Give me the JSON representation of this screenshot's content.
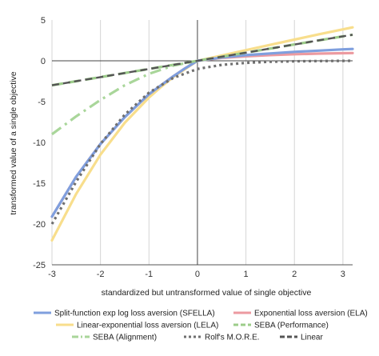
{
  "chart_data": {
    "type": "line",
    "title": "",
    "xlabel": "standardized but untransformed value of  single objective",
    "ylabel": "transformed value of a single objective",
    "xlim": [
      -3,
      3.2
    ],
    "ylim": [
      -25,
      5
    ],
    "x_ticks": [
      -3,
      -2,
      -1,
      0,
      1,
      2,
      3
    ],
    "y_ticks": [
      5,
      0,
      -5,
      -10,
      -15,
      -20,
      -25
    ],
    "grid": "vertical gridlines",
    "legend_position": "bottom",
    "series": [
      {
        "name": "Split-function exp log loss aversion (SFELLA)",
        "color": "#7f9fde",
        "style": "solid",
        "x": [
          -3,
          -2.5,
          -2,
          -1.5,
          -1,
          -0.75,
          -0.5,
          -0.25,
          0,
          0.5,
          1,
          1.5,
          2,
          2.5,
          3,
          3.2
        ],
        "y": [
          -19.1,
          -14.2,
          -10.2,
          -6.9,
          -4.1,
          -3.0,
          -1.9,
          -0.9,
          0,
          0.4,
          0.7,
          0.9,
          1.1,
          1.25,
          1.4,
          1.45
        ]
      },
      {
        "name": "Exponential loss aversion (ELA)",
        "color": "#ec9aa0",
        "style": "solid",
        "x": [
          -3,
          -2.5,
          -2,
          -1.5,
          -1,
          -0.75,
          -0.5,
          -0.25,
          0,
          0.5,
          1,
          1.5,
          2,
          2.5,
          3,
          3.2
        ],
        "y": [
          -19.1,
          -14.2,
          -10.2,
          -6.9,
          -4.1,
          -3.0,
          -1.9,
          -0.9,
          0,
          0.35,
          0.55,
          0.7,
          0.8,
          0.88,
          0.93,
          0.95
        ]
      },
      {
        "name": "Linear-exponential loss aversion (LELA)",
        "color": "#f8de8c",
        "style": "solid",
        "x": [
          -3,
          -2.5,
          -2,
          -1.5,
          -1,
          -0.75,
          -0.5,
          -0.25,
          0,
          0.5,
          1,
          1.5,
          2,
          2.5,
          3,
          3.2
        ],
        "y": [
          -22.0,
          -16.3,
          -11.5,
          -7.6,
          -4.5,
          -3.2,
          -2.0,
          -1.0,
          0,
          0.65,
          1.3,
          1.95,
          2.6,
          3.25,
          3.85,
          4.1
        ]
      },
      {
        "name": "SEBA (Performance)",
        "color": "#9ccc8a",
        "style": "dashed",
        "x": [
          -3,
          -2,
          -1,
          0,
          1,
          2,
          3,
          3.2
        ],
        "y": [
          -3.0,
          -2.0,
          -1.0,
          0,
          1.0,
          2.0,
          3.0,
          3.2
        ]
      },
      {
        "name": "SEBA (Alignment)",
        "color": "#a9d69a",
        "style": "dashdot",
        "x": [
          -3,
          -2.5,
          -2,
          -1.5,
          -1,
          -0.5,
          0
        ],
        "y": [
          -9.0,
          -6.8,
          -4.8,
          -3.0,
          -1.6,
          -0.6,
          0
        ]
      },
      {
        "name": "Rolf's M.O.R.E.",
        "color": "#6f6f6f",
        "style": "dotted",
        "x": [
          -3,
          -2.5,
          -2,
          -1.5,
          -1,
          -0.5,
          0,
          0.5,
          1,
          1.5,
          2,
          2.5,
          3,
          3.2
        ],
        "y": [
          -20.0,
          -14.8,
          -10.2,
          -6.6,
          -3.9,
          -2.1,
          -1.0,
          -0.5,
          -0.25,
          -0.12,
          -0.06,
          -0.03,
          -0.01,
          0
        ]
      },
      {
        "name": "Linear",
        "color": "#555555",
        "style": "longdash",
        "x": [
          -3,
          -2,
          -1,
          0,
          1,
          2,
          3,
          3.2
        ],
        "y": [
          -3.0,
          -2.0,
          -1.0,
          0,
          1.0,
          2.0,
          3.0,
          3.2
        ]
      }
    ]
  }
}
